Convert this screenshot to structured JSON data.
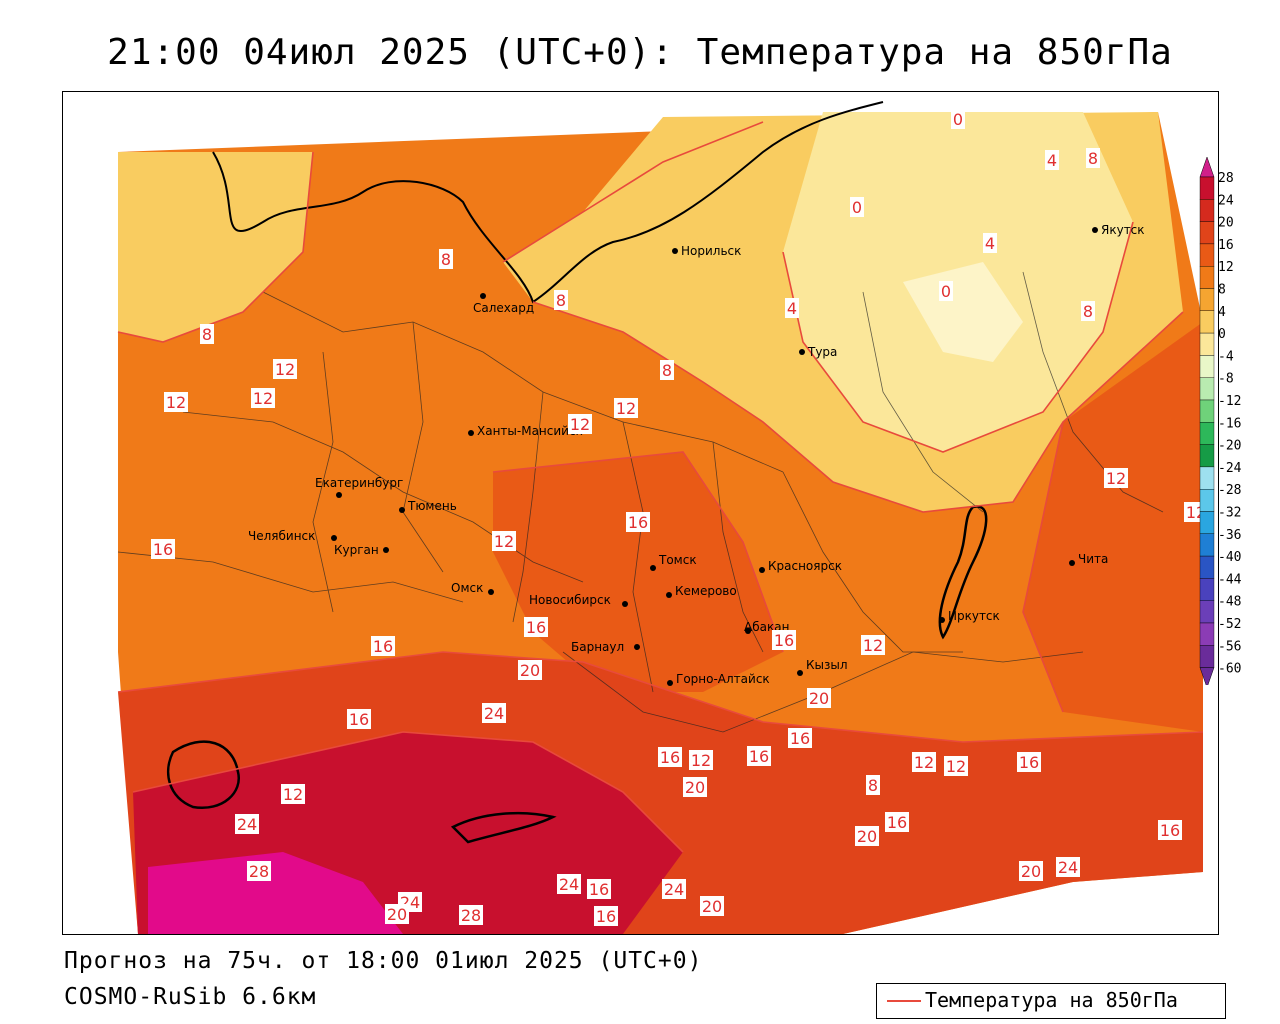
{
  "title": "21:00 04июл 2025 (UTC+0): Температура на 850гПа",
  "footer": {
    "forecast": "Прогноз на 75ч. от 18:00 01июл 2025 (UTC+0)",
    "model": "COSMO-RuSib 6.6км"
  },
  "key": {
    "label": "Температура на 850гПа",
    "color": "#e84a3c"
  },
  "legend": {
    "ticks": [
      "28",
      "24",
      "20",
      "16",
      "12",
      "8",
      "4",
      "0",
      "-4",
      "-8",
      "-12",
      "-16",
      "-20",
      "-24",
      "-28",
      "-32",
      "-36",
      "-40",
      "-44",
      "-48",
      "-52",
      "-56",
      "-60"
    ],
    "colors": [
      "#c8102e",
      "#d52a1e",
      "#e0441a",
      "#e95a16",
      "#f07a18",
      "#f5a531",
      "#f9cc60",
      "#fbe79a",
      "#e9f7c8",
      "#b9ebb0",
      "#6fd27a",
      "#2db85a",
      "#169b46",
      "#9ee0ef",
      "#5cc7ea",
      "#2aa6e0",
      "#1f7fd4",
      "#2a55c4",
      "#4a42bd",
      "#6b3fb8",
      "#8b3cb5",
      "#6a2c9a"
    ]
  },
  "cities": [
    {
      "name": "Норильск"
    },
    {
      "name": "Якутск"
    },
    {
      "name": "Салехард"
    },
    {
      "name": "Тура"
    },
    {
      "name": "Ханты-Мансийск"
    },
    {
      "name": "Екатеринбург"
    },
    {
      "name": "Тюмень"
    },
    {
      "name": "Челябинск"
    },
    {
      "name": "Курган"
    },
    {
      "name": "Омск"
    },
    {
      "name": "Новосибирск"
    },
    {
      "name": "Томск"
    },
    {
      "name": "Кемерово"
    },
    {
      "name": "Красноярск"
    },
    {
      "name": "Барнаул"
    },
    {
      "name": "Абакан"
    },
    {
      "name": "Горно-Алтайск"
    },
    {
      "name": "Кызыл"
    },
    {
      "name": "Иркутск"
    },
    {
      "name": "Чита"
    }
  ],
  "isotherm_labels": [
    "0",
    "4",
    "8",
    "0",
    "4",
    "0",
    "8",
    "8",
    "8",
    "8",
    "4",
    "8",
    "12",
    "12",
    "12",
    "12",
    "12",
    "12",
    "16",
    "12",
    "12",
    "16",
    "16",
    "16",
    "20",
    "24",
    "16",
    "16",
    "20",
    "12",
    "20",
    "24",
    "28",
    "24",
    "20",
    "28",
    "24",
    "16",
    "16",
    "24",
    "20",
    "16",
    "12",
    "12",
    "8",
    "16",
    "12",
    "12",
    "16",
    "16",
    "16",
    "20",
    "20",
    "24",
    "16"
  ]
}
